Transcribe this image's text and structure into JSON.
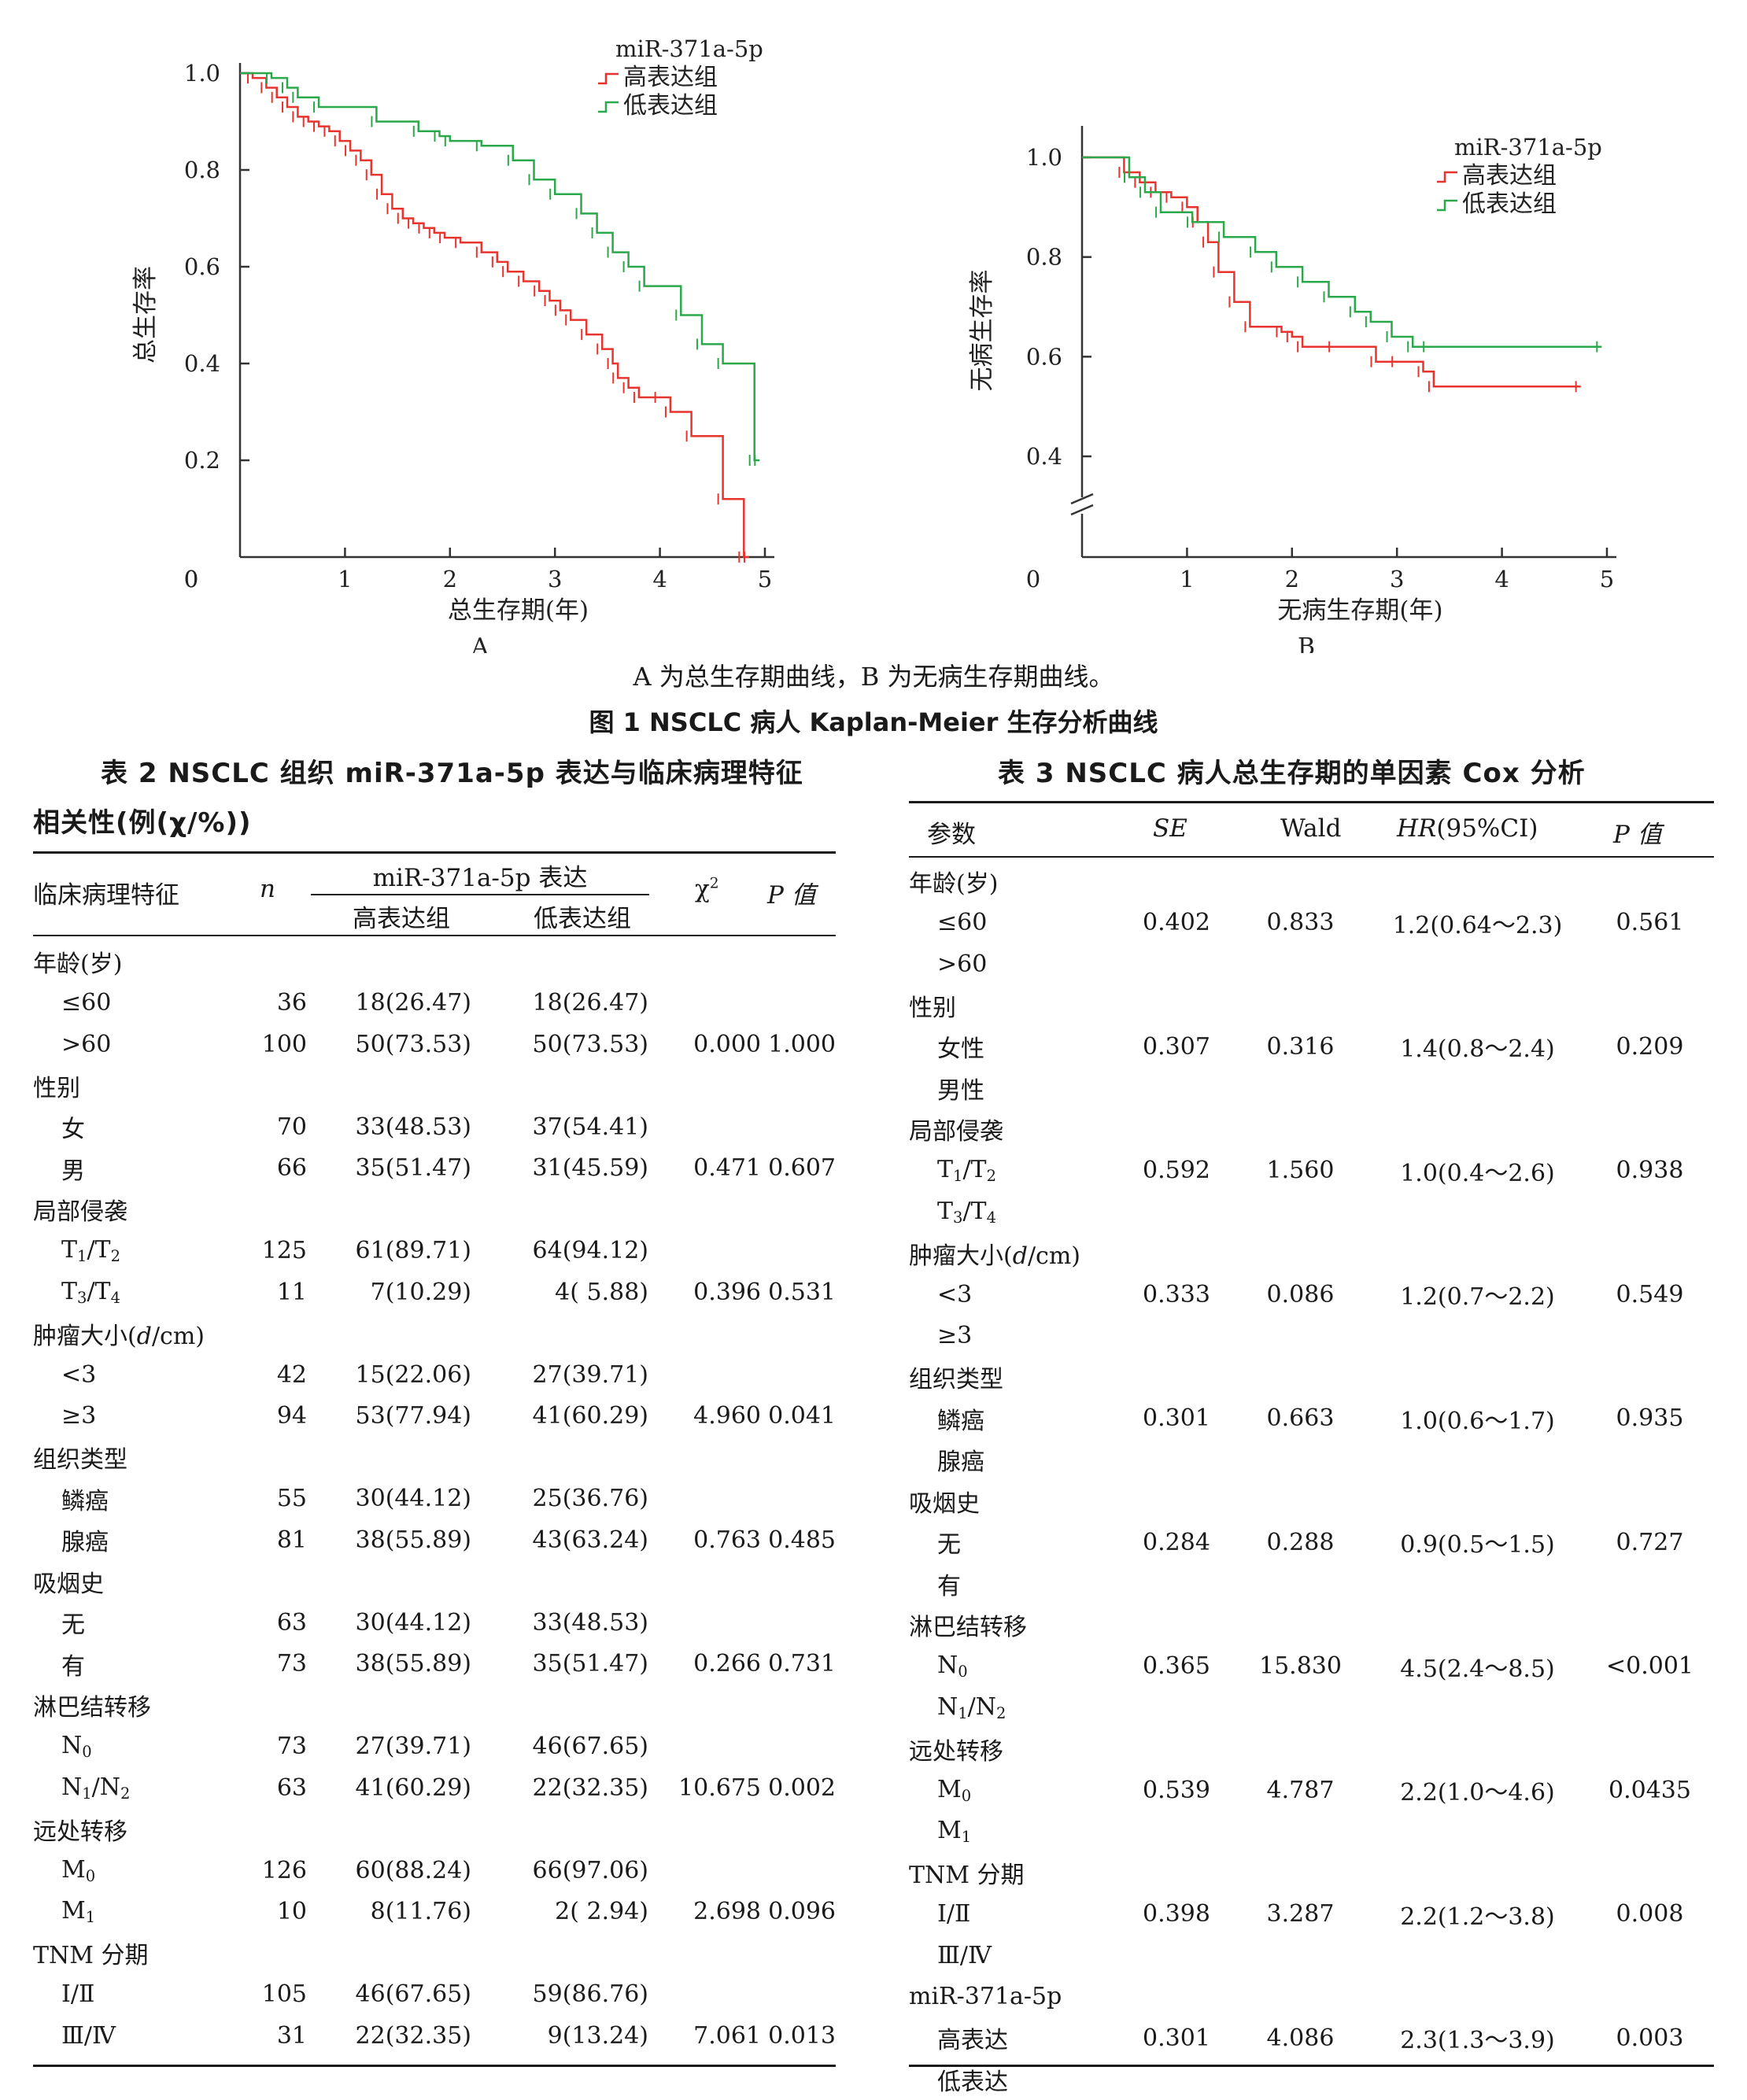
{
  "figure": {
    "chart_data": [
      {
        "type": "line",
        "panel": "A",
        "xlabel": "总生存期(年)",
        "ylabel": "总生存率",
        "xlim": [
          0,
          5
        ],
        "ylim": [
          0,
          1.0
        ],
        "xticks": [
          "0",
          "1",
          "2",
          "3",
          "4",
          "5"
        ],
        "yticks": [
          "0",
          "0.2",
          "0.4",
          "0.6",
          "0.8",
          "1.0"
        ],
        "legend_title": "miR-371a-5p",
        "legend_position": "top-right",
        "series": [
          {
            "name": "高表达组",
            "color": "#e8342e",
            "x": [
              0,
              0.12,
              0.25,
              0.35,
              0.45,
              0.55,
              0.65,
              0.75,
              0.85,
              0.95,
              1.05,
              1.15,
              1.25,
              1.35,
              1.45,
              1.55,
              1.65,
              1.75,
              1.85,
              1.95,
              2.1,
              2.3,
              2.45,
              2.55,
              2.7,
              2.85,
              2.95,
              3.05,
              3.15,
              3.3,
              3.45,
              3.55,
              3.6,
              3.7,
              3.8,
              4.0,
              4.1,
              4.3,
              4.6,
              4.8,
              4.85
            ],
            "y": [
              1.0,
              0.99,
              0.97,
              0.95,
              0.93,
              0.91,
              0.9,
              0.89,
              0.88,
              0.86,
              0.84,
              0.82,
              0.79,
              0.75,
              0.72,
              0.7,
              0.69,
              0.68,
              0.67,
              0.66,
              0.65,
              0.63,
              0.61,
              0.59,
              0.57,
              0.55,
              0.53,
              0.51,
              0.49,
              0.46,
              0.43,
              0.4,
              0.37,
              0.35,
              0.33,
              0.33,
              0.3,
              0.25,
              0.12,
              0.0,
              0.0
            ]
          },
          {
            "name": "低表达组",
            "color": "#2ba84a",
            "x": [
              0,
              0.3,
              0.45,
              0.55,
              0.75,
              1.3,
              1.7,
              1.9,
              2.0,
              2.3,
              2.6,
              2.8,
              3.0,
              3.25,
              3.4,
              3.55,
              3.7,
              3.85,
              4.2,
              4.4,
              4.6,
              4.9,
              4.95
            ],
            "y": [
              1.0,
              0.99,
              0.97,
              0.95,
              0.93,
              0.9,
              0.88,
              0.87,
              0.86,
              0.85,
              0.82,
              0.78,
              0.75,
              0.71,
              0.67,
              0.63,
              0.6,
              0.56,
              0.5,
              0.44,
              0.4,
              0.2,
              0.2
            ]
          }
        ]
      },
      {
        "type": "line",
        "panel": "B",
        "xlabel": "无病生存期(年)",
        "ylabel": "无病生存率",
        "xlim": [
          0,
          5
        ],
        "ylim": [
          0,
          1.0
        ],
        "axis_break": true,
        "xticks": [
          "0",
          "1",
          "2",
          "3",
          "4",
          "5"
        ],
        "yticks": [
          "0.4",
          "0.6",
          "0.8",
          "1.0"
        ],
        "legend_title": "miR-371a-5p",
        "legend_position": "top-right",
        "series": [
          {
            "name": "高表达组",
            "color": "#e8342e",
            "x": [
              0,
              0.4,
              0.55,
              0.7,
              0.85,
              1.0,
              1.1,
              1.2,
              1.3,
              1.45,
              1.6,
              1.9,
              2.0,
              2.1,
              2.4,
              2.8,
              3.0,
              3.25,
              3.35,
              4.75
            ],
            "y": [
              1.0,
              0.97,
              0.95,
              0.93,
              0.92,
              0.9,
              0.87,
              0.83,
              0.77,
              0.71,
              0.66,
              0.65,
              0.64,
              0.62,
              0.62,
              0.59,
              0.59,
              0.57,
              0.54,
              0.54
            ]
          },
          {
            "name": "低表达组",
            "color": "#2ba84a",
            "x": [
              0,
              0.45,
              0.6,
              0.75,
              1.05,
              1.35,
              1.65,
              1.85,
              2.1,
              2.35,
              2.6,
              2.75,
              2.95,
              3.15,
              3.3,
              4.95
            ],
            "y": [
              1.0,
              0.96,
              0.93,
              0.89,
              0.87,
              0.84,
              0.81,
              0.78,
              0.75,
              0.72,
              0.69,
              0.67,
              0.64,
              0.62,
              0.62,
              0.62
            ]
          }
        ]
      }
    ],
    "panel_a": "A",
    "panel_b": "B",
    "note": "A 为总生存期曲线，B 为无病生存期曲线。",
    "caption": "图 1  NSCLC 病人 Kaplan-Meier 生存分析曲线"
  },
  "table2": {
    "title_line1": "表 2   NSCLC 组织 miR-371a-5p 表达与临床病理特征",
    "title_line2": "相关性(例(χ/%))",
    "header": {
      "feature": "临床病理特征",
      "n": "n",
      "expr": "miR-371a-5p 表达",
      "high": "高表达组",
      "low": "低表达组",
      "chi": "χ",
      "chi_sup": "2",
      "p": "P 值"
    },
    "rows": [
      {
        "label": "年龄(岁)",
        "group": true
      },
      {
        "label": "≤60",
        "n": "36",
        "high": "18(26.47)",
        "low": "18(26.47)"
      },
      {
        "label": ">60",
        "n": "100",
        "high": "50(73.53)",
        "low": "50(73.53)",
        "chi": "0.000",
        "p": "1.000"
      },
      {
        "label": "性别",
        "group": true
      },
      {
        "label": "女",
        "n": "70",
        "high": "33(48.53)",
        "low": "37(54.41)"
      },
      {
        "label": "男",
        "n": "66",
        "high": "35(51.47)",
        "low": "31(45.59)",
        "chi": "0.471",
        "p": "0.607"
      },
      {
        "label": "局部侵袭",
        "group": true
      },
      {
        "label": "T1/T2",
        "n": "125",
        "high": "61(89.71)",
        "low": "64(94.12)"
      },
      {
        "label": "T3/T4",
        "n": "11",
        "high": "7(10.29)",
        "low": "4( 5.88)",
        "chi": "0.396",
        "p": "0.531"
      },
      {
        "label": "肿瘤大小(d/cm)",
        "group": true
      },
      {
        "label": "<3",
        "n": "42",
        "high": "15(22.06)",
        "low": "27(39.71)"
      },
      {
        "label": "≥3",
        "n": "94",
        "high": "53(77.94)",
        "low": "41(60.29)",
        "chi": "4.960",
        "p": "0.041"
      },
      {
        "label": "组织类型",
        "group": true
      },
      {
        "label": "鳞癌",
        "n": "55",
        "high": "30(44.12)",
        "low": "25(36.76)"
      },
      {
        "label": "腺癌",
        "n": "81",
        "high": "38(55.89)",
        "low": "43(63.24)",
        "chi": "0.763",
        "p": "0.485"
      },
      {
        "label": "吸烟史",
        "group": true
      },
      {
        "label": "无",
        "n": "63",
        "high": "30(44.12)",
        "low": "33(48.53)"
      },
      {
        "label": "有",
        "n": "73",
        "high": "38(55.89)",
        "low": "35(51.47)",
        "chi": "0.266",
        "p": "0.731"
      },
      {
        "label": "淋巴结转移",
        "group": true
      },
      {
        "label": "N0",
        "n": "73",
        "high": "27(39.71)",
        "low": "46(67.65)"
      },
      {
        "label": "N1/N2",
        "n": "63",
        "high": "41(60.29)",
        "low": "22(32.35)",
        "chi": "10.675",
        "p": "0.002"
      },
      {
        "label": "远处转移",
        "group": true
      },
      {
        "label": "M0",
        "n": "126",
        "high": "60(88.24)",
        "low": "66(97.06)"
      },
      {
        "label": "M1",
        "n": "10",
        "high": "8(11.76)",
        "low": "2( 2.94)",
        "chi": "2.698",
        "p": "0.096"
      },
      {
        "label": "TNM 分期",
        "group": true
      },
      {
        "label": "Ⅰ/Ⅱ",
        "n": "105",
        "high": "46(67.65)",
        "low": "59(86.76)"
      },
      {
        "label": "Ⅲ/Ⅳ",
        "n": "31",
        "high": "22(32.35)",
        "low": "9(13.24)",
        "chi": "7.061",
        "p": "0.013"
      }
    ]
  },
  "table3": {
    "title": "表 3   NSCLC 病人总生存期的单因素 Cox 分析",
    "header": {
      "param": "参数",
      "se": "SE",
      "wald": "Wald",
      "hr": "HR",
      "ci": "(95%CI)",
      "p": "P 值"
    },
    "rows": [
      {
        "label": "年龄(岁)",
        "group": true
      },
      {
        "label": "≤60",
        "se": "0.402",
        "wald": "0.833",
        "hr": "1.2(0.64～2.3)",
        "p": "0.561"
      },
      {
        "label": ">60"
      },
      {
        "label": "性别",
        "group": true
      },
      {
        "label": "女性",
        "se": "0.307",
        "wald": "0.316",
        "hr": "1.4(0.8～2.4)",
        "p": "0.209"
      },
      {
        "label": "男性"
      },
      {
        "label": "局部侵袭",
        "group": true
      },
      {
        "label": "T1/T2",
        "se": "0.592",
        "wald": "1.560",
        "hr": "1.0(0.4～2.6)",
        "p": "0.938"
      },
      {
        "label": "T3/T4"
      },
      {
        "label": "肿瘤大小(d/cm)",
        "group": true
      },
      {
        "label": "<3",
        "se": "0.333",
        "wald": "0.086",
        "hr": "1.2(0.7～2.2)",
        "p": "0.549"
      },
      {
        "label": "≥3"
      },
      {
        "label": "组织类型",
        "group": true
      },
      {
        "label": "鳞癌",
        "se": "0.301",
        "wald": "0.663",
        "hr": "1.0(0.6～1.7)",
        "p": "0.935"
      },
      {
        "label": "腺癌"
      },
      {
        "label": "吸烟史",
        "group": true
      },
      {
        "label": "无",
        "se": "0.284",
        "wald": "0.288",
        "hr": "0.9(0.5～1.5)",
        "p": "0.727"
      },
      {
        "label": "有"
      },
      {
        "label": "淋巴结转移",
        "group": true
      },
      {
        "label": "N0",
        "se": "0.365",
        "wald": "15.830",
        "hr": "4.5(2.4～8.5)",
        "p": "<0.001"
      },
      {
        "label": "N1/N2"
      },
      {
        "label": "远处转移",
        "group": true
      },
      {
        "label": "M0",
        "se": "0.539",
        "wald": "4.787",
        "hr": "2.2(1.0～4.6)",
        "p": "0.0435"
      },
      {
        "label": "M1"
      },
      {
        "label": "TNM 分期",
        "group": true
      },
      {
        "label": "Ⅰ/Ⅱ",
        "se": "0.398",
        "wald": "3.287",
        "hr": "2.2(1.2～3.8)",
        "p": "0.008"
      },
      {
        "label": "Ⅲ/Ⅳ"
      },
      {
        "label": "miR-371a-5p",
        "group": true
      },
      {
        "label": "高表达",
        "se": "0.301",
        "wald": "4.086",
        "hr": "2.3(1.3～3.9)",
        "p": "0.003"
      },
      {
        "label": "低表达"
      }
    ]
  }
}
